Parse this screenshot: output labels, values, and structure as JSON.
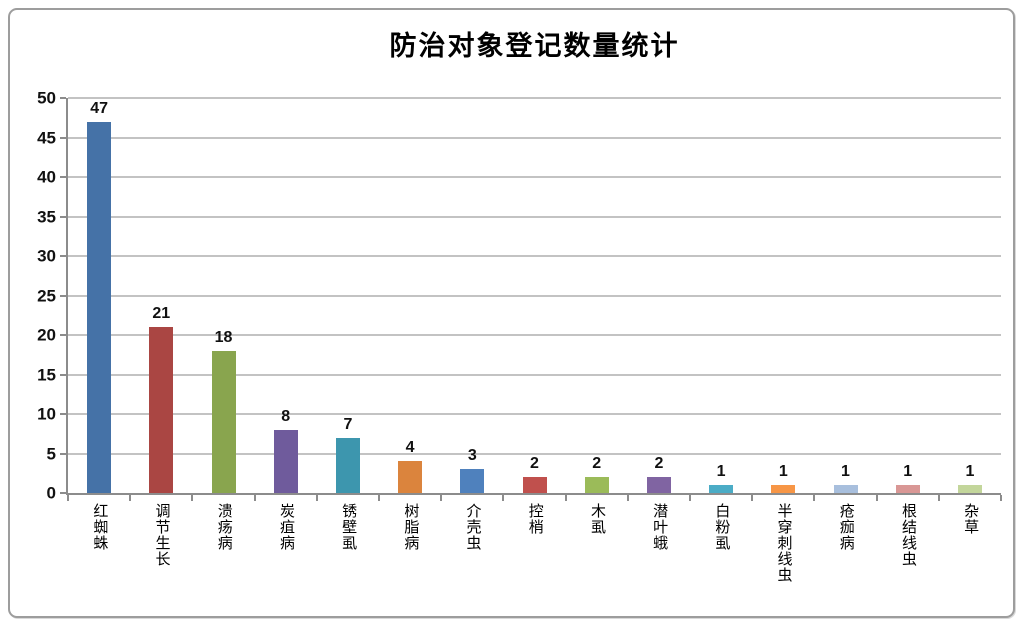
{
  "chart_data": {
    "type": "bar",
    "title": "防治对象登记数量统计",
    "categories": [
      "红蜘蛛",
      "调节生长",
      "溃疡病",
      "炭疽病",
      "锈壁虱",
      "树脂病",
      "介壳虫",
      "控梢",
      "木虱",
      "潜叶蛾",
      "白粉虱",
      "半穿刺线虫",
      "疮痂病",
      "根结线虫",
      "杂草"
    ],
    "values": [
      47,
      21,
      18,
      8,
      7,
      4,
      3,
      2,
      2,
      2,
      1,
      1,
      1,
      1,
      1
    ],
    "bar_colors": [
      "#4572A7",
      "#AA4643",
      "#89A54E",
      "#6F5B9C",
      "#3D96AE",
      "#DB843D",
      "#4F81BD",
      "#C0504D",
      "#9BBB59",
      "#8064A2",
      "#4BACC6",
      "#F79646",
      "#A8BFDD",
      "#D99795",
      "#C3D69B"
    ],
    "xlabel": "",
    "ylabel": "",
    "ylim": [
      0,
      50
    ],
    "ytick_step": 5,
    "ytick_labels": [
      "0",
      "5",
      "10",
      "15",
      "20",
      "25",
      "30",
      "35",
      "40",
      "45",
      "50"
    ],
    "grid": "horizontal",
    "legend": "none",
    "value_labels": true,
    "gridline_color": "#c3c3c3",
    "axis_color": "#8c8c8c"
  }
}
